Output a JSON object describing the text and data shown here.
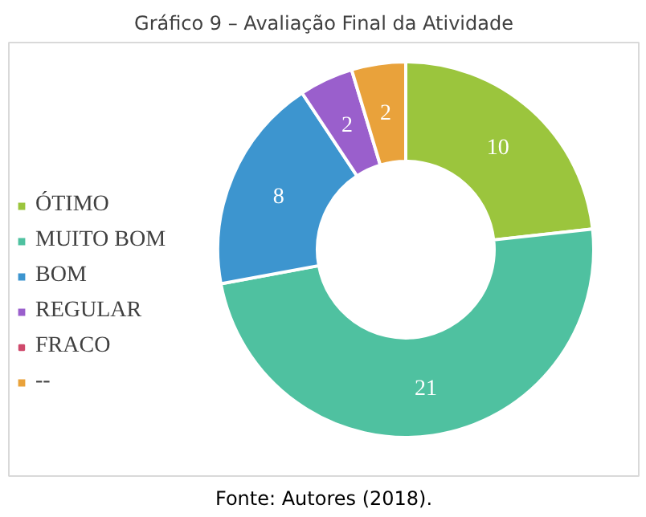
{
  "chart_data": {
    "type": "donut",
    "title": "Gráfico 9 – Avaliação Final da Atividade",
    "categories": [
      "ÓTIMO",
      "MUITO BOM",
      "BOM",
      "REGULAR",
      "FRACO",
      "--"
    ],
    "values": [
      10,
      21,
      8,
      2,
      0,
      2
    ],
    "colors": [
      "#9bc53d",
      "#4fc1a0",
      "#3d95cf",
      "#9a5fcc",
      "#cf4a6c",
      "#e9a23b"
    ],
    "value_labels": [
      "10",
      "21",
      "8",
      "2",
      null,
      "2"
    ],
    "legend": "left",
    "annotations": [
      "Fonte: Autores (2018)."
    ]
  }
}
